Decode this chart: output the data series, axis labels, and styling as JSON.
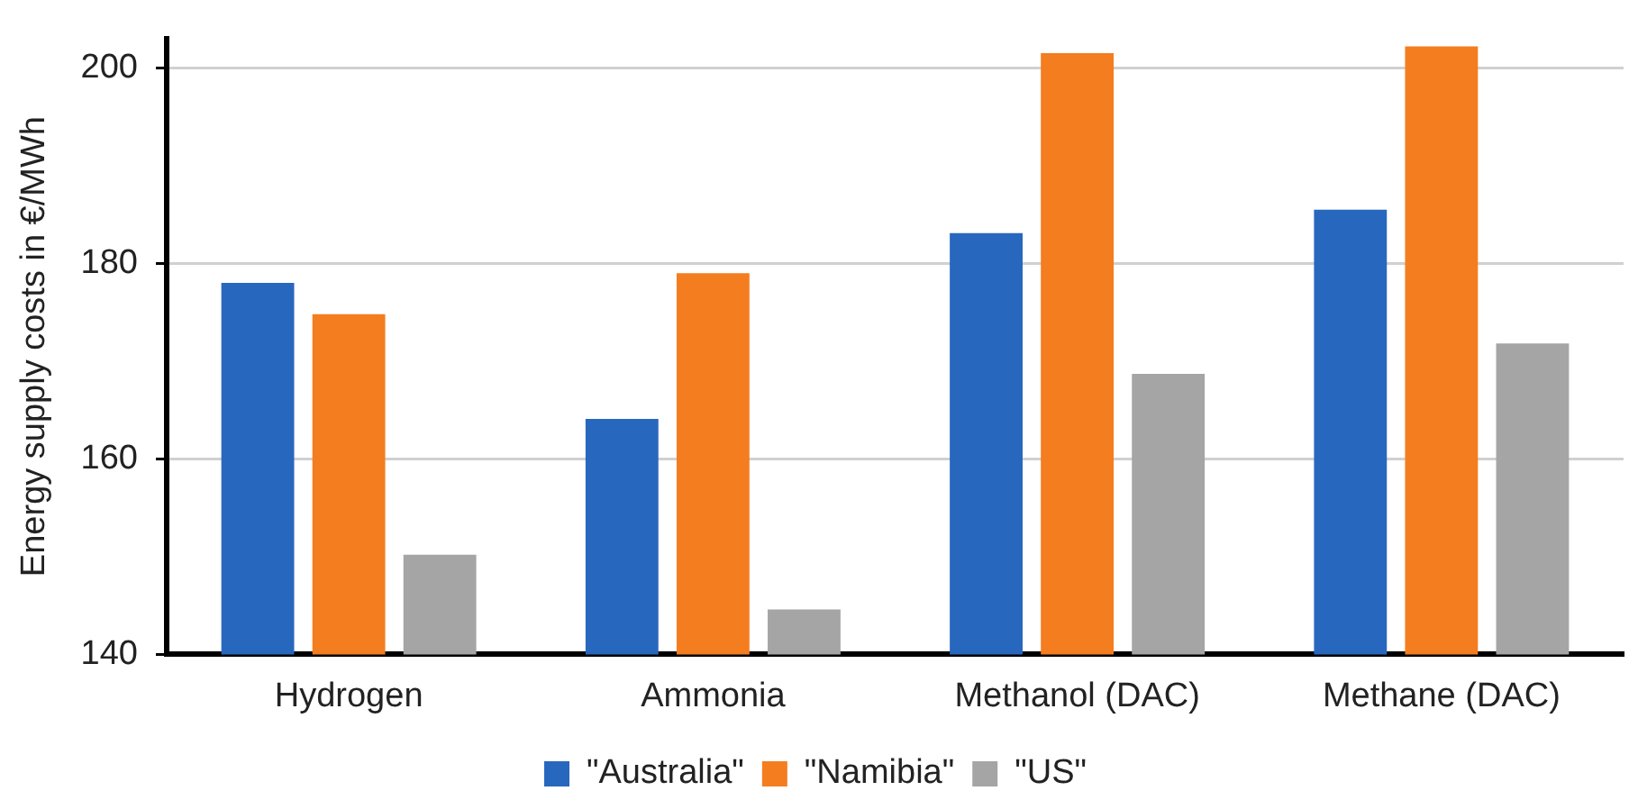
{
  "chart_data": {
    "type": "bar",
    "ylabel": "Energy supply costs in €/MWh",
    "categories": [
      "Hydrogen",
      "Ammonia",
      "Methanol (DAC)",
      "Methane (DAC)"
    ],
    "series": [
      {
        "name": "\"Australia\"",
        "color": "#2867be",
        "values": [
          178.0,
          164.1,
          183.1,
          185.5
        ]
      },
      {
        "name": "\"Namibia\"",
        "color": "#f47d20",
        "values": [
          174.8,
          179.0,
          201.5,
          202.2
        ]
      },
      {
        "name": "\"US\"",
        "color": "#a5a5a5",
        "values": [
          150.2,
          144.6,
          168.7,
          171.8
        ]
      }
    ],
    "ylim": [
      140,
      203
    ],
    "yticks": [
      140,
      160,
      180,
      200
    ],
    "grid": "y",
    "legend": "bottom"
  }
}
